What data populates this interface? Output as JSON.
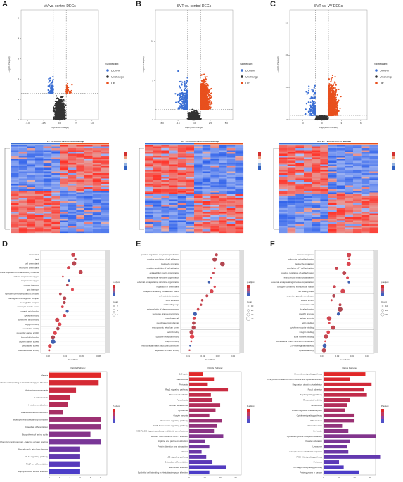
{
  "panels": {
    "A": {
      "letter": "A",
      "title": "VV vs. control DEGs",
      "xlabel": "Log2(Fold Change)",
      "ylabel": "-Log10 (P-adjust)",
      "xticks": [
        "-5.0",
        "-2.5",
        "0.0",
        "2.5",
        "5.0"
      ],
      "yticks": [
        "0",
        "1",
        "2",
        "3",
        "4",
        "5"
      ]
    },
    "B": {
      "letter": "B",
      "title": "SVT vs. control DEGs",
      "xlabel": "Log2(Fold Change)",
      "ylabel": "-Log10 (P-adjust)",
      "xticks": [
        "-5.0",
        "-2.5",
        "0.0",
        "2.5",
        "5.0"
      ],
      "yticks": [
        "0",
        "5",
        "10"
      ]
    },
    "C": {
      "letter": "C",
      "title": "SVT vs. VV DEGs",
      "xlabel": "Log2(Fold Change)",
      "ylabel": "-Log10 (P-adjust)",
      "xticks": [
        "-3",
        "0",
        "3",
        "6"
      ],
      "yticks": [
        "0",
        "10",
        "20",
        "30"
      ]
    },
    "D": {
      "letter": "D"
    },
    "E": {
      "letter": "E"
    },
    "F": {
      "letter": "F"
    }
  },
  "legend": {
    "title": "Significant",
    "items": [
      "DOWN",
      "Unchange",
      "UP"
    ],
    "colors": [
      "#3b6fd4",
      "#333333",
      "#e8501e"
    ]
  },
  "heatmaps": {
    "A": {
      "title": "VV vs. control DEGs TOP50 heatmap"
    },
    "B": {
      "title": "SVT vs. control DEGs TOP50 heatmap"
    },
    "C": {
      "title": "SVT vs. VV DEGs TOP50 heatmap"
    }
  },
  "go": {
    "D": {
      "terms": [
        "chemotaxis",
        "taxis",
        "cell chemotaxis",
        "neutrophil chemotaxis",
        "positive regulation of inflammatory response",
        "cellular response to oxygen",
        "response to oxygen",
        "oxygen transport",
        "gas transport",
        "hydrogen peroxide catabolic process",
        "haptoglobin-hemoglobin complex",
        "hemoglobin complex",
        "endocytic vesicle lumen",
        "organic acid binding",
        "cytokine binding",
        "carboxylic acid binding",
        "oxygen binding",
        "antioxidant activity",
        "molecular carrier activity",
        "haptoglobin binding",
        "oxygen carrier activity",
        "peroxidase activity",
        "oxidoreductase activity"
      ],
      "ticks": [
        "0.02",
        "0.04",
        "0.06",
        "0.08"
      ],
      "xlabel": "GeneRatio",
      "sizes": [
        "2",
        "4",
        "6"
      ],
      "padj_label": "p.adjust"
    },
    "E": {
      "terms": [
        "positive regulation of cytokine production",
        "positive regulation of cell adhesion",
        "leukocyte migration",
        "positive regulation of cell activation",
        "extracellular matrix organization",
        "extracellular structure organization",
        "external encapsulating structure organization",
        "regulation of chemotaxis",
        "collagen-containing extracellular matrix",
        "cell-substrate junction",
        "focal adhesion",
        "cell leading edge",
        "external side of plasma membrane",
        "secretory granule membrane",
        "membrane raft",
        "membrane microdomain",
        "endoplasmic reticulum lumen",
        "actin binding",
        "cytokine receptor binding",
        "integrin binding",
        "extracellular matrix structural constituent",
        "peptidase activator activity"
      ],
      "ticks": [
        "0.01",
        "0.02",
        "0.03",
        "0.04"
      ],
      "xlabel": "GeneRatio",
      "sizes": [
        "10",
        "20",
        "30",
        "40"
      ],
      "padj_label": "p.adjust"
    },
    "F": {
      "terms": [
        "immune response",
        "leukocyte cell-cell adhesion",
        "leukocyte migration",
        "regulation of T cell activation",
        "positive regulation of cell adhesion",
        "extracellular matrix organization",
        "external encapsulating structure organization",
        "collagen-containing extracellular matrix",
        "cell leading edge",
        "secretory granule membrane",
        "vesicle lumen",
        "membrane raft",
        "focal adhesion",
        "specific granule",
        "tertiary granule",
        "actin binding",
        "cytokine receptor binding",
        "integrin binding",
        "actin filament binding",
        "extracellular matrix structural constituent",
        "GTPase regulator activity",
        "cytokine activity"
      ],
      "ticks": [
        "0.01",
        "0.02",
        "0.03",
        "0.04"
      ],
      "xlabel": "GeneRatio",
      "sizes": [
        "10",
        "20",
        "30"
      ],
      "padj_label": "p.adjust"
    }
  },
  "kegg": {
    "title": "KEGG Pathway",
    "D": {
      "items": [
        "Malaria",
        "Epithelial cell signaling in Helicobacter pylori infection",
        "African trypanosomiasis",
        "Leishmaniasis",
        "Histidine metabolism",
        "Arachidonic acid metabolism",
        "Neutrophil extracellular trap formation",
        "Osteoclast differentiation",
        "Biosynthesis of amino acids",
        "Chemical carcinogenesis - reactive oxygen species",
        "Non-alcoholic fatty liver disease",
        "IL-17 signaling pathway",
        "Th17 cell differentiation",
        "Staphylococcus aureus infection"
      ],
      "values": [
        5.0,
        4.8,
        2.6,
        2.0,
        1.8,
        1.3,
        5.0,
        5.0,
        4.0,
        5.0,
        3.0,
        3.0,
        3.0,
        3.0
      ],
      "xticks": [
        "0",
        "1",
        "2",
        "3",
        "4",
        "5"
      ]
    },
    "E": {
      "items": [
        "Cell cycle",
        "Tuberculosis",
        "Pertussis",
        "Rap1 signaling pathway",
        "Rheumatoid arthritis",
        "Amoebiasis",
        "Cellular senescence",
        "Lysosome",
        "Oocyte meiosis",
        "Chemokine signaling pathway",
        "NOD-like receptor signaling pathway",
        "AGE-RAGE signaling pathway in diabetic complications",
        "Human T-cell leukemia virus 1 infection",
        "Arginine and proline metabolism",
        "Protein digestion and absorption",
        "Malaria",
        "p53 signaling pathway",
        "Osteoclast differentiation",
        "Salmonella infection",
        "Epithelial cell signaling in Helicobacter pylori infection"
      ],
      "values": [
        9,
        16,
        12,
        25,
        14,
        15,
        20,
        17,
        13,
        21,
        18,
        16,
        22,
        10,
        13,
        8,
        11,
        15,
        24,
        13
      ],
      "xticks": [
        "0",
        "10",
        "20",
        "30"
      ]
    },
    "F": {
      "items": [
        "Chemokine signaling pathway",
        "Viral protein interaction with cytokine and cytokine receptor",
        "Regulation of actin cytoskeleton",
        "Focal adhesion",
        "Rap1 signaling pathway",
        "Rheumatoid arthritis",
        "Amoebiasis",
        "Protein digestion and absorption",
        "Cytokine signaling pathway",
        "Tuberculosis",
        "Malaria infection",
        "Cell cycle",
        "Cytokine-cytokine receptor interaction",
        "Platelet activation",
        "Lysosome",
        "Leukocyte transendothelial migration",
        "PI3K-Akt signaling pathway",
        "Pertussis",
        "NF-kappa B signaling pathway",
        "Proteoglycans in cancer"
      ],
      "values": [
        27,
        17,
        31,
        26,
        28,
        17,
        15,
        14,
        20,
        20,
        12,
        16,
        34,
        17,
        15,
        16,
        37,
        10,
        13,
        23
      ],
      "xticks": [
        "0",
        "10",
        "20",
        "30"
      ]
    }
  }
}
